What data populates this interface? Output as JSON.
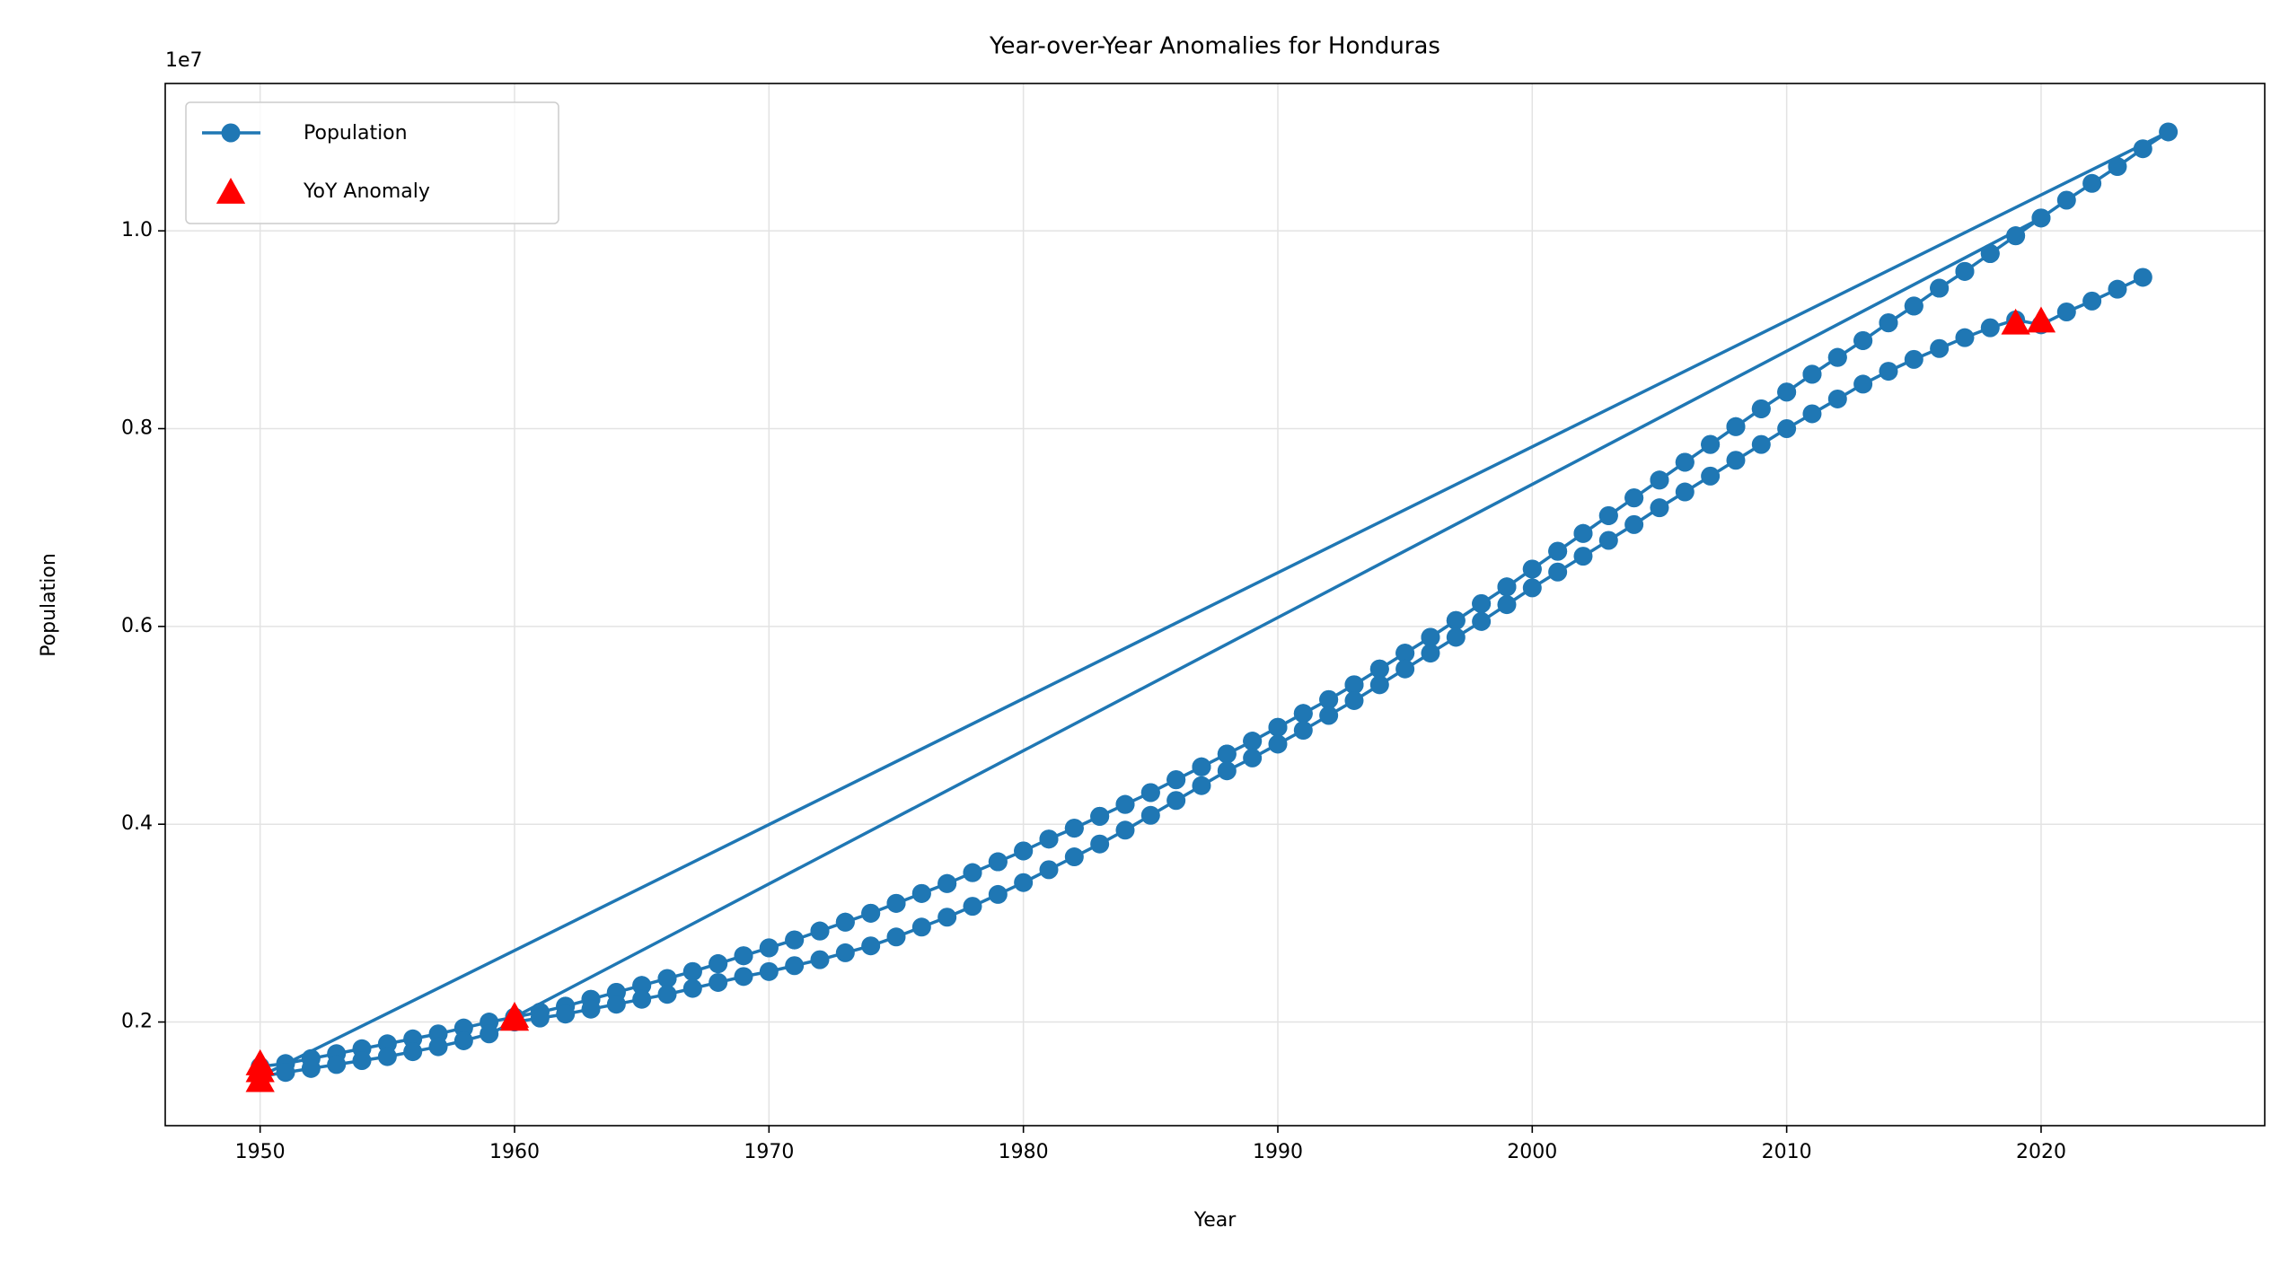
{
  "chart_data": {
    "type": "line",
    "title": "Year-over-Year Anomalies for Honduras",
    "x_label": "Year",
    "y_label": "Population",
    "y_offset_label": "1e7",
    "x": [
      1950,
      1951,
      1952,
      1953,
      1954,
      1955,
      1956,
      1957,
      1958,
      1959,
      1960,
      1961,
      1962,
      1963,
      1964,
      1965,
      1966,
      1967,
      1968,
      1969,
      1970,
      1971,
      1972,
      1973,
      1974,
      1975,
      1976,
      1977,
      1978,
      1979,
      1980,
      1981,
      1982,
      1983,
      1984,
      1985,
      1986,
      1987,
      1988,
      1989,
      1990,
      1991,
      1992,
      1993,
      1994,
      1995,
      1996,
      1997,
      1998,
      1999,
      2000,
      2001,
      2002,
      2003,
      2004,
      2005,
      2006,
      2007,
      2008,
      2009,
      2010,
      2011,
      2012,
      2013,
      2014,
      2015,
      2016,
      2017,
      2018,
      2019,
      2020,
      1960,
      1961,
      1962,
      1963,
      1964,
      1965,
      1966,
      1967,
      1968,
      1969,
      1970,
      1971,
      1972,
      1973,
      1974,
      1975,
      1976,
      1977,
      1978,
      1979,
      1980,
      1981,
      1982,
      1983,
      1984,
      1985,
      1986,
      1987,
      1988,
      1989,
      1990,
      1991,
      1992,
      1993,
      1994,
      1995,
      1996,
      1997,
      1998,
      1999,
      2000,
      2001,
      2002,
      2003,
      2004,
      2005,
      2006,
      2007,
      2008,
      2009,
      2010,
      2011,
      2012,
      2013,
      2014,
      2015,
      2016,
      2017,
      2018,
      2019,
      2020,
      2021,
      2022,
      2023,
      2024,
      2025,
      1950,
      1951,
      1952,
      1953,
      1954,
      1955,
      1956,
      1957,
      1958,
      1959,
      1960,
      1961,
      1962,
      1963,
      1964,
      1965,
      1966,
      1967,
      1968,
      1969,
      1970,
      1971,
      1972,
      1973,
      1974,
      1975,
      1976,
      1977,
      1978,
      1979,
      1980,
      1981,
      1982,
      1983,
      1984,
      1985,
      1986,
      1987,
      1988,
      1989,
      1990,
      1991,
      1992,
      1993,
      1994,
      1995,
      1996,
      1997,
      1998,
      1999,
      2000,
      2001,
      2002,
      2003,
      2004,
      2005,
      2006,
      2007,
      2008,
      2009,
      2010,
      2011,
      2012,
      2013,
      2014,
      2015,
      2016,
      2017,
      2018,
      2019,
      2020,
      2021,
      2022,
      2023,
      2024
    ],
    "series": [
      {
        "name": "Population",
        "color": "#1f77b4",
        "values": [
          1550000,
          1580000,
          1630000,
          1680000,
          1730000,
          1780000,
          1830000,
          1880000,
          1940000,
          2000000,
          2050000,
          2100000,
          2160000,
          2230000,
          2300000,
          2370000,
          2440000,
          2510000,
          2590000,
          2670000,
          2750000,
          2830000,
          2920000,
          3010000,
          3100000,
          3200000,
          3300000,
          3400000,
          3510000,
          3620000,
          3730000,
          3850000,
          3960000,
          4080000,
          4200000,
          4320000,
          4450000,
          4580000,
          4710000,
          4840000,
          4980000,
          5120000,
          5260000,
          5410000,
          5570000,
          5730000,
          5890000,
          6060000,
          6230000,
          6400000,
          6580000,
          6760000,
          6940000,
          7120000,
          7300000,
          7480000,
          7660000,
          7840000,
          8020000,
          8200000,
          8370000,
          8550000,
          8720000,
          8890000,
          9070000,
          9240000,
          9420000,
          9590000,
          9770000,
          9950000,
          10130000,
          2050000,
          2100000,
          2160000,
          2230000,
          2300000,
          2370000,
          2440000,
          2510000,
          2590000,
          2670000,
          2750000,
          2830000,
          2920000,
          3010000,
          3100000,
          3200000,
          3300000,
          3400000,
          3510000,
          3620000,
          3730000,
          3850000,
          3960000,
          4080000,
          4200000,
          4320000,
          4450000,
          4580000,
          4710000,
          4840000,
          4980000,
          5120000,
          5260000,
          5410000,
          5570000,
          5730000,
          5890000,
          6060000,
          6230000,
          6400000,
          6580000,
          6760000,
          6940000,
          7120000,
          7300000,
          7480000,
          7660000,
          7840000,
          8020000,
          8200000,
          8370000,
          8550000,
          8720000,
          8890000,
          9070000,
          9240000,
          9420000,
          9590000,
          9770000,
          9950000,
          10130000,
          10310000,
          10480000,
          10650000,
          10830000,
          11000000,
          1450000,
          1490000,
          1530000,
          1570000,
          1610000,
          1650000,
          1700000,
          1750000,
          1810000,
          1880000,
          2000000,
          2040000,
          2080000,
          2130000,
          2180000,
          2230000,
          2280000,
          2340000,
          2400000,
          2460000,
          2510000,
          2570000,
          2630000,
          2700000,
          2770000,
          2860000,
          2960000,
          3060000,
          3170000,
          3290000,
          3410000,
          3540000,
          3670000,
          3800000,
          3940000,
          4090000,
          4240000,
          4390000,
          4540000,
          4670000,
          4810000,
          4950000,
          5100000,
          5250000,
          5410000,
          5570000,
          5730000,
          5890000,
          6050000,
          6220000,
          6390000,
          6550000,
          6710000,
          6870000,
          7030000,
          7200000,
          7360000,
          7520000,
          7680000,
          7840000,
          8000000,
          8150000,
          8300000,
          8450000,
          8580000,
          8700000,
          8810000,
          8920000,
          9020000,
          9100000,
          9050000,
          9180000,
          9290000,
          9410000,
          9530000
        ]
      }
    ],
    "anomalies": {
      "name": "YoY Anomaly",
      "color": "#ff0000",
      "x": [
        1950,
        1950,
        1950,
        1960,
        1960,
        2019,
        2020
      ],
      "values": [
        1400000,
        1500000,
        1570000,
        2050000,
        2020000,
        9060000,
        9080000
      ]
    },
    "xlim": [
      1946.27,
      2028.79
    ],
    "ylim": [
      952000,
      11490000
    ],
    "xticks": [
      1950,
      1960,
      1970,
      1980,
      1990,
      2000,
      2010,
      2020
    ],
    "yticks": [
      {
        "value": 2000000,
        "label": "0.2"
      },
      {
        "value": 4000000,
        "label": "0.4"
      },
      {
        "value": 6000000,
        "label": "0.6"
      },
      {
        "value": 8000000,
        "label": "0.8"
      },
      {
        "value": 10000000,
        "label": "1.0"
      }
    ],
    "grid": true,
    "legend": "upper left"
  }
}
